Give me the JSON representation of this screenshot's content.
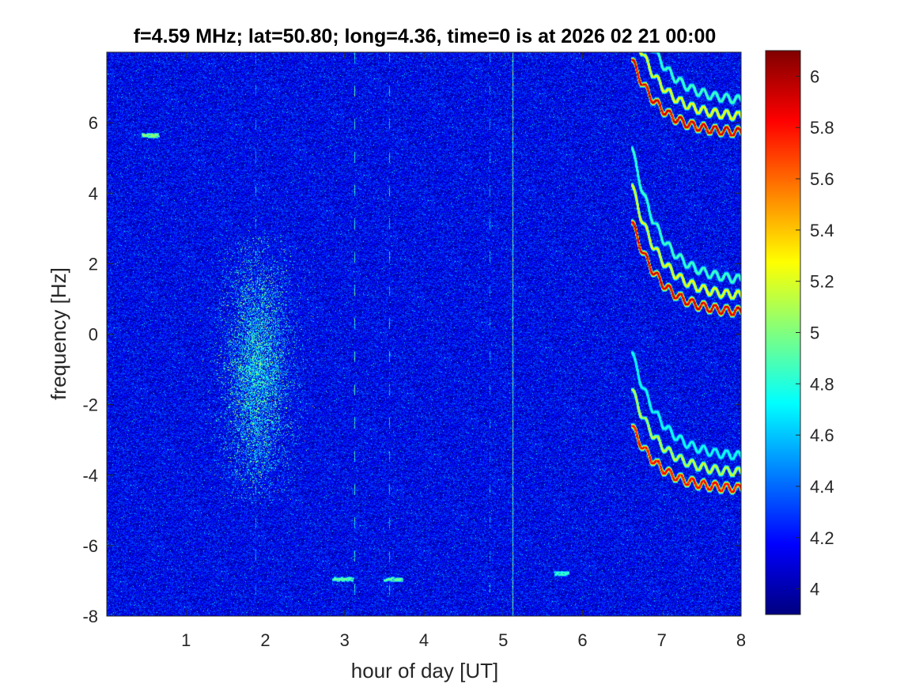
{
  "chart_data": {
    "type": "heatmap",
    "title": "f=4.59 MHz;  lat=50.80; long=4.36, time=0 is at 2026 02 21 00:00",
    "xlabel": "hour of day [UT]",
    "ylabel": "frequency [Hz]",
    "xlim": [
      0,
      8
    ],
    "ylim": [
      -8,
      8
    ],
    "xticks": [
      "1",
      "2",
      "3",
      "4",
      "5",
      "6",
      "7",
      "8"
    ],
    "yticks": [
      "-8",
      "-6",
      "-4",
      "-2",
      "0",
      "2",
      "4",
      "6"
    ],
    "colormap": "jet",
    "clim": [
      3.9,
      6.1
    ],
    "colorbar_ticks": [
      "4",
      "4.2",
      "4.4",
      "4.6",
      "4.8",
      "5",
      "5.2",
      "5.4",
      "5.6",
      "5.8",
      "6"
    ],
    "background_level": 4.15,
    "features": [
      {
        "kind": "diffuse_band",
        "x_center": 1.9,
        "x_width": 0.45,
        "y_range": [
          -5,
          3
        ],
        "level": 4.75
      },
      {
        "kind": "vertical_line",
        "x": 5.12,
        "level": 4.9
      },
      {
        "kind": "vertical_dashed",
        "x": 3.12,
        "level": 4.8
      },
      {
        "kind": "vertical_dashed",
        "x": 3.56,
        "level": 4.6
      },
      {
        "kind": "vertical_dashed",
        "x": 4.83,
        "level": 4.5
      },
      {
        "kind": "vertical_dashed",
        "x": 1.88,
        "level": 4.5
      },
      {
        "kind": "decaying_trace",
        "x_start": 6.62,
        "x_end": 8.0,
        "y_start": 7.8,
        "y_end": 5.7,
        "level": 6.0
      },
      {
        "kind": "decaying_trace",
        "x_start": 6.62,
        "x_end": 8.0,
        "y_start": 3.2,
        "y_end": 0.6,
        "level": 6.0
      },
      {
        "kind": "decaying_trace",
        "x_start": 6.62,
        "x_end": 8.0,
        "y_start": -2.6,
        "y_end": -4.4,
        "level": 5.9
      },
      {
        "kind": "short_trace",
        "x_start": 2.85,
        "x_end": 3.1,
        "y": -6.95,
        "level": 5.0
      },
      {
        "kind": "short_trace",
        "x_start": 3.5,
        "x_end": 3.72,
        "y": -6.95,
        "level": 5.0
      },
      {
        "kind": "short_trace",
        "x_start": 5.65,
        "x_end": 5.82,
        "y": -6.78,
        "level": 4.9
      },
      {
        "kind": "short_trace",
        "x_start": 0.45,
        "x_end": 0.65,
        "y": 5.65,
        "level": 5.1
      }
    ]
  }
}
